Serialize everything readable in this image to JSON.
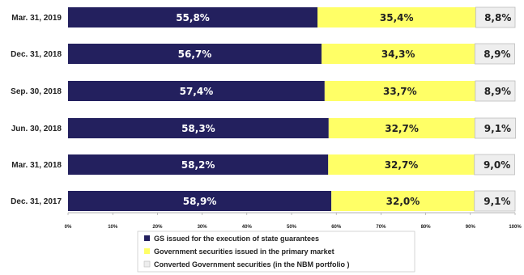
{
  "chart_data": {
    "type": "bar",
    "orientation": "horizontal",
    "stacked": true,
    "categories": [
      "Mar. 31, 2019",
      "Dec. 31, 2018",
      "Sep. 30, 2018",
      "Jun. 30, 2018",
      "Mar. 31, 2018",
      "Dec. 31, 2017"
    ],
    "series": [
      {
        "name": "GS issued for the execution of state guarantees",
        "color": "#23205e",
        "label_color": "#ffffff",
        "values": [
          55.8,
          56.7,
          57.4,
          58.3,
          58.2,
          58.9
        ],
        "data_labels": [
          "55,8%",
          "56,7%",
          "57,4%",
          "58,3%",
          "58,2%",
          "58,9%"
        ]
      },
      {
        "name": "Government securities issued in the primary market",
        "color": "#ffff66",
        "label_color": "#222222",
        "values": [
          35.4,
          34.3,
          33.7,
          32.7,
          32.7,
          32.0
        ],
        "data_labels": [
          "35,4%",
          "34,3%",
          "33,7%",
          "32,7%",
          "32,7%",
          "32,0%"
        ]
      },
      {
        "name": "Converted Government securities (in the NBM portfolio )",
        "color": "#eeeeee",
        "label_color": "#222222",
        "values": [
          8.8,
          8.9,
          8.9,
          9.1,
          9.0,
          9.1
        ],
        "data_labels": [
          "8,8%",
          "8,9%",
          "8,9%",
          "9,1%",
          "9,0%",
          "9,1%"
        ]
      }
    ],
    "xlim": [
      0,
      100
    ],
    "x_ticks": [
      "0%",
      "10%",
      "20%",
      "30%",
      "40%",
      "50%",
      "60%",
      "70%",
      "80%",
      "90%",
      "100%"
    ],
    "grid": false,
    "legend_position": "bottom"
  }
}
